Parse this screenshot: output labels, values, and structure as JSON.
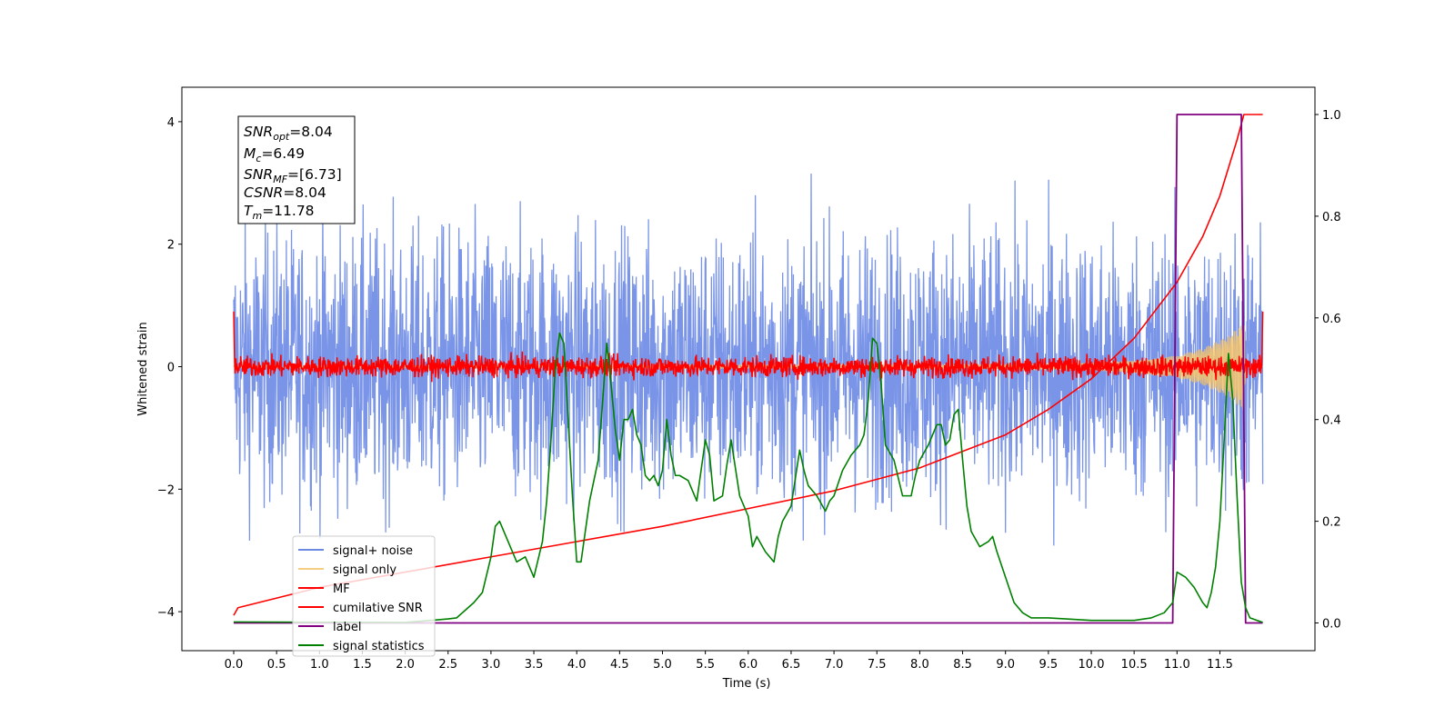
{
  "chart_data": {
    "type": "line",
    "xlabel": "Time (s)",
    "ylabel": "Whitened strain",
    "xlim": [
      -0.6,
      12.6
    ],
    "ylim": [
      -4.55,
      4.55
    ],
    "ylim_right": [
      -0.05,
      1.04
    ],
    "xticks": [
      "0.0",
      "0.5",
      "1.0",
      "1.5",
      "2.0",
      "2.5",
      "3.0",
      "3.5",
      "4.0",
      "4.5",
      "5.0",
      "5.5",
      "6.0",
      "6.5",
      "7.0",
      "7.5",
      "8.0",
      "8.5",
      "9.0",
      "9.5",
      "10.0",
      "10.5",
      "11.0",
      "11.5"
    ],
    "yticks_left": [
      "−4",
      "−2",
      "0",
      "2",
      "4"
    ],
    "yticks_right": [
      "0.0",
      "0.2",
      "0.4",
      "0.6",
      "0.8",
      "1.0"
    ],
    "legend_position": "lower-left",
    "annotation": {
      "snr_opt_label": "SNR",
      "snr_opt_sub": "opt",
      "snr_opt_value": "=8.04",
      "mc_label": "M",
      "mc_sub": "c",
      "mc_value": "=6.49",
      "snr_mf_label": "SNR",
      "snr_mf_sub": "MF",
      "snr_mf_value": "=[6.73]",
      "csnr_label": "CSNR",
      "csnr_value": "=8.04",
      "tm_label": "T",
      "tm_sub": "m",
      "tm_value": "=11.78"
    },
    "series": [
      {
        "name": "signal+ noise",
        "color": "#6c8ae4",
        "axis": "left",
        "description": "whitened noise, roughly uniform envelope about ±2 to ±4",
        "envelope": [
          -4.1,
          4.1
        ],
        "x_range": [
          0.0,
          12.0
        ]
      },
      {
        "name": "signal only",
        "color": "#f5c46b",
        "axis": "left",
        "description": "chirp signal growing near merger",
        "x": [
          0.0,
          9.0,
          10.0,
          10.5,
          11.0,
          11.3,
          11.6,
          11.78,
          11.8,
          12.0
        ],
        "amplitude": [
          0.02,
          0.03,
          0.06,
          0.1,
          0.18,
          0.3,
          0.5,
          0.72,
          0.0,
          0.0
        ]
      },
      {
        "name": "MF",
        "color": "#ff0000",
        "axis": "left",
        "description": "matched filter output, fluctuating about 0 within about ±0.3",
        "envelope": [
          -0.25,
          0.6
        ],
        "x_range": [
          0.0,
          12.0
        ]
      },
      {
        "name": "cumilative SNR",
        "color": "#ff0000",
        "axis": "right",
        "x": [
          0.0,
          0.05,
          1.0,
          2.0,
          3.0,
          4.0,
          5.0,
          6.0,
          7.0,
          8.0,
          9.0,
          9.5,
          10.0,
          10.5,
          11.0,
          11.3,
          11.5,
          11.7,
          11.78,
          12.0
        ],
        "y": [
          0.015,
          0.03,
          0.07,
          0.1,
          0.13,
          0.16,
          0.19,
          0.225,
          0.26,
          0.305,
          0.37,
          0.42,
          0.48,
          0.56,
          0.67,
          0.76,
          0.84,
          0.95,
          1.0,
          1.0
        ]
      },
      {
        "name": "label",
        "color": "#800080",
        "axis": "right",
        "x": [
          0.0,
          10.95,
          11.0,
          11.75,
          11.8,
          12.0
        ],
        "y": [
          0.0,
          0.0,
          1.0,
          1.0,
          0.0,
          0.0
        ]
      },
      {
        "name": "signal statistics",
        "color": "#008000",
        "axis": "right",
        "x": [
          0.0,
          2.0,
          2.3,
          2.5,
          2.6,
          2.7,
          2.8,
          2.9,
          3.0,
          3.05,
          3.1,
          3.2,
          3.3,
          3.4,
          3.5,
          3.6,
          3.65,
          3.7,
          3.75,
          3.8,
          3.85,
          3.9,
          3.95,
          4.0,
          4.05,
          4.1,
          4.15,
          4.2,
          4.25,
          4.3,
          4.35,
          4.4,
          4.45,
          4.5,
          4.55,
          4.6,
          4.65,
          4.7,
          4.75,
          4.8,
          4.85,
          4.9,
          4.95,
          5.0,
          5.05,
          5.1,
          5.15,
          5.2,
          5.3,
          5.35,
          5.4,
          5.5,
          5.55,
          5.6,
          5.7,
          5.75,
          5.8,
          5.9,
          6.0,
          6.05,
          6.1,
          6.2,
          6.3,
          6.35,
          6.4,
          6.5,
          6.6,
          6.65,
          6.7,
          6.8,
          6.9,
          6.95,
          7.0,
          7.1,
          7.2,
          7.3,
          7.35,
          7.4,
          7.45,
          7.5,
          7.55,
          7.6,
          7.7,
          7.8,
          7.9,
          7.95,
          8.0,
          8.1,
          8.2,
          8.25,
          8.3,
          8.35,
          8.4,
          8.45,
          8.5,
          8.55,
          8.6,
          8.7,
          8.8,
          8.85,
          8.9,
          9.0,
          9.1,
          9.2,
          9.3,
          9.5,
          10.0,
          10.5,
          10.7,
          10.85,
          10.95,
          11.0,
          11.1,
          11.2,
          11.3,
          11.35,
          11.4,
          11.45,
          11.5,
          11.55,
          11.6,
          11.65,
          11.7,
          11.75,
          11.8,
          11.85,
          12.0
        ],
        "y": [
          0.002,
          0.001,
          0.005,
          0.008,
          0.01,
          0.025,
          0.04,
          0.06,
          0.13,
          0.19,
          0.2,
          0.16,
          0.12,
          0.13,
          0.09,
          0.16,
          0.24,
          0.36,
          0.5,
          0.57,
          0.55,
          0.4,
          0.25,
          0.12,
          0.12,
          0.18,
          0.24,
          0.28,
          0.32,
          0.43,
          0.55,
          0.47,
          0.38,
          0.32,
          0.4,
          0.4,
          0.42,
          0.37,
          0.35,
          0.29,
          0.28,
          0.29,
          0.27,
          0.3,
          0.4,
          0.33,
          0.29,
          0.29,
          0.28,
          0.26,
          0.24,
          0.36,
          0.33,
          0.24,
          0.25,
          0.31,
          0.36,
          0.25,
          0.21,
          0.15,
          0.17,
          0.14,
          0.12,
          0.17,
          0.2,
          0.23,
          0.34,
          0.3,
          0.27,
          0.25,
          0.22,
          0.24,
          0.25,
          0.3,
          0.33,
          0.35,
          0.37,
          0.44,
          0.56,
          0.55,
          0.47,
          0.35,
          0.32,
          0.25,
          0.25,
          0.29,
          0.32,
          0.35,
          0.39,
          0.39,
          0.35,
          0.36,
          0.41,
          0.42,
          0.32,
          0.23,
          0.18,
          0.15,
          0.16,
          0.17,
          0.14,
          0.09,
          0.04,
          0.02,
          0.01,
          0.01,
          0.005,
          0.005,
          0.01,
          0.02,
          0.04,
          0.1,
          0.09,
          0.07,
          0.04,
          0.03,
          0.06,
          0.11,
          0.2,
          0.36,
          0.53,
          0.44,
          0.25,
          0.08,
          0.03,
          0.01,
          0.001
        ]
      }
    ]
  }
}
